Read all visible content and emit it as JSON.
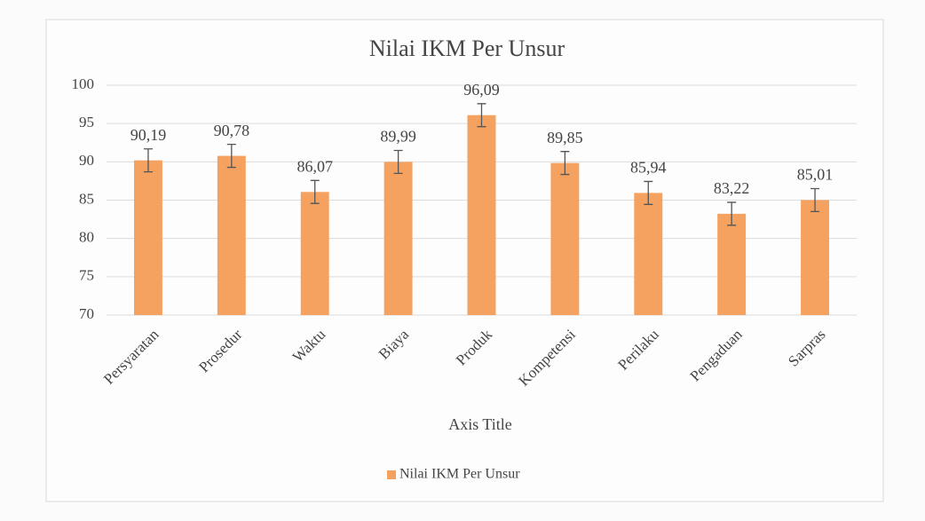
{
  "chart_data": {
    "type": "bar",
    "title": "Nilai IKM Per Unsur",
    "x_label": "Axis Title",
    "categories": [
      "Persyaratan",
      "Prosedur",
      "Waktu",
      "Biaya",
      "Produk",
      "Kompetensi",
      "Perilaku",
      "Pengaduan",
      "Sarpras"
    ],
    "series": [
      {
        "name": "Nilai IKM Per Unsur",
        "color": "#f5a261",
        "values": [
          90.19,
          90.78,
          86.07,
          89.99,
          96.09,
          89.85,
          85.94,
          83.22,
          85.01
        ],
        "value_labels": [
          "90,19",
          "90,78",
          "86,07",
          "89,99",
          "96,09",
          "89,85",
          "85,94",
          "83,22",
          "85,01"
        ],
        "errors": [
          1.5,
          1.5,
          1.5,
          1.5,
          1.5,
          1.5,
          1.5,
          1.5,
          1.5
        ]
      }
    ],
    "ylim": [
      70,
      100
    ],
    "yticks": [
      70,
      75,
      80,
      85,
      90,
      95,
      100
    ],
    "grid": true,
    "legend": "bottom"
  }
}
